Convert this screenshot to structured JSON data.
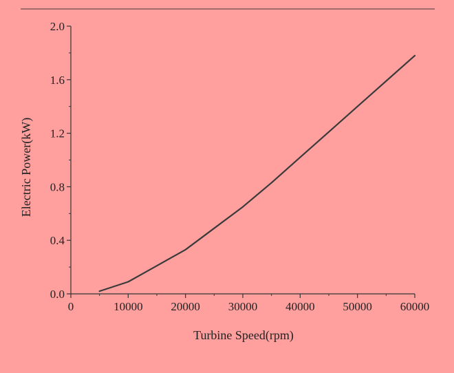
{
  "chart_data": {
    "type": "line",
    "title": "",
    "xlabel": "Turbine Speed(rpm)",
    "ylabel": "Electric Power(kW)",
    "xlim": [
      0,
      60000
    ],
    "ylim": [
      0,
      2.0
    ],
    "x_ticks": [
      "0",
      "10000",
      "20000",
      "30000",
      "40000",
      "50000",
      "60000"
    ],
    "y_ticks": [
      "0.0",
      "0.4",
      "0.8",
      "1.2",
      "1.6",
      "2.0"
    ],
    "grid": false,
    "legend": "none",
    "series": [
      {
        "x": [
          5000,
          10000,
          15000,
          20000,
          25000,
          30000,
          35000,
          40000,
          45000,
          50000,
          55000,
          60000
        ],
        "y": [
          0.02,
          0.09,
          0.21,
          0.33,
          0.49,
          0.65,
          0.83,
          1.02,
          1.21,
          1.4,
          1.59,
          1.78
        ]
      }
    ]
  },
  "colors": {
    "background": "#ff9f9e",
    "line": "#3a3a3a",
    "axis": "#333333",
    "top_rule": "#6b4a4a"
  }
}
